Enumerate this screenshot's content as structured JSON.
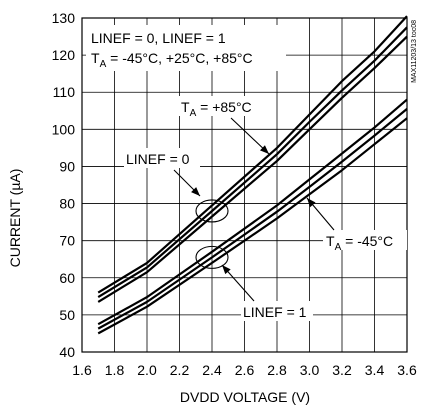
{
  "chart_data": {
    "type": "line",
    "title": "",
    "xlabel": "DVDD VOLTAGE (V)",
    "ylabel": "CURRENT (µA)",
    "xlim": [
      1.6,
      3.6
    ],
    "ylim": [
      40,
      130
    ],
    "x_ticks": [
      "1.6",
      "1.8",
      "2.0",
      "2.2",
      "2.4",
      "2.6",
      "2.8",
      "3.0",
      "3.2",
      "3.4",
      "3.6"
    ],
    "y_ticks": [
      "40",
      "50",
      "60",
      "70",
      "80",
      "90",
      "100",
      "110",
      "120",
      "130"
    ],
    "grid": true,
    "series": [
      {
        "x": [
          1.7,
          2.0,
          2.4,
          2.8,
          3.0,
          3.2,
          3.4,
          3.6
        ],
        "y": [
          56.0,
          64.0,
          79.5,
          95.0,
          104.0,
          113.0,
          121.0,
          130.5
        ]
      },
      {
        "x": [
          1.7,
          2.0,
          2.4,
          2.8,
          3.0,
          3.2,
          3.4,
          3.6
        ],
        "y": [
          54.8,
          62.8,
          78.0,
          93.3,
          102.0,
          110.5,
          118.5,
          127.5
        ]
      },
      {
        "x": [
          1.7,
          2.0,
          2.4,
          2.8,
          3.0,
          3.2,
          3.4,
          3.6
        ],
        "y": [
          53.5,
          61.5,
          76.5,
          91.5,
          100.0,
          108.5,
          116.5,
          125.0
        ]
      },
      {
        "x": [
          1.7,
          2.0,
          2.4,
          2.8,
          3.0,
          3.2,
          3.4,
          3.6
        ],
        "y": [
          47.5,
          54.8,
          67.0,
          79.5,
          86.5,
          93.5,
          100.5,
          108.0
        ]
      },
      {
        "x": [
          1.7,
          2.0,
          2.4,
          2.8,
          3.0,
          3.2,
          3.4,
          3.6
        ],
        "y": [
          46.3,
          53.5,
          65.5,
          77.8,
          84.5,
          91.3,
          98.3,
          105.5
        ]
      },
      {
        "x": [
          1.7,
          2.0,
          2.4,
          2.8,
          3.0,
          3.2,
          3.4,
          3.6
        ],
        "y": [
          45.0,
          52.2,
          64.0,
          76.0,
          82.5,
          89.0,
          96.0,
          103.0
        ]
      }
    ],
    "annotations": [
      {
        "id": "cond1",
        "text": "LINEF = 0, LINEF = 1"
      },
      {
        "id": "cond2",
        "main": "T",
        "sub": "A",
        "rest": " = -45°C, +25°C, +85°C"
      },
      {
        "id": "ta85",
        "main": "T",
        "sub": "A",
        "rest": " = +85°C"
      },
      {
        "id": "linef0",
        "text": "LINEF = 0"
      },
      {
        "id": "ta45",
        "main": "T",
        "sub": "A",
        "rest": " = -45°C"
      },
      {
        "id": "linef1",
        "text": "LINEF = 1"
      }
    ],
    "watermark": "MAX11203/13 toc08"
  }
}
